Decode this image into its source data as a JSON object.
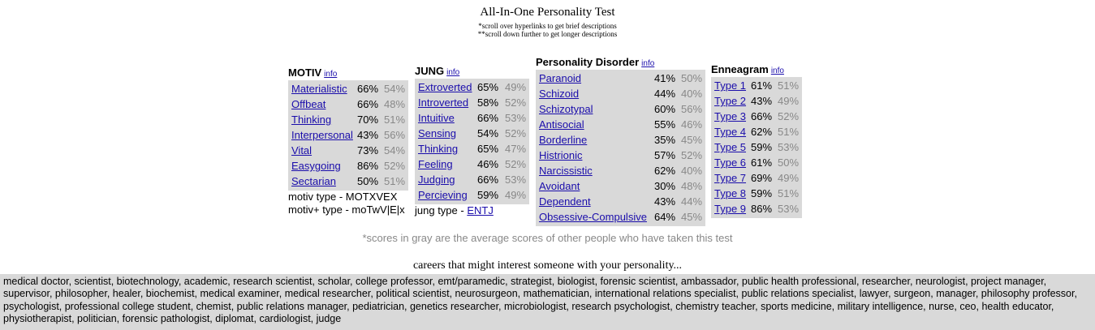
{
  "page": {
    "title": "All-In-One Personality Test",
    "note1": "*scroll over hyperlinks to get brief descriptions",
    "note2": "**scroll down further to get longer descriptions",
    "footnote": "*scores in gray are the average scores of other people who have taken this test",
    "careers_title": "careers that might interest someone with your personality...",
    "careers_text": "medical doctor, scientist, biotechnology, academic, research scientist, scholar, college professor, emt/paramedic, strategist, biologist, forensic scientist, ambassador, public health professional, researcher, neurologist, project manager, supervisor, philosopher, healer, biochemist, medical examiner, medical researcher, political scientist, neurosurgeon, mathematician, international relations specialist, public relations specialist, lawyer, surgeon, manager, philosophy professor, psychologist, professional college student, chemist, public relations manager, pediatrician, genetics researcher, microbiologist, research psychologist, chemistry teacher, sports medicine, military intelligence, nurse, ceo, health educator, physiotherapist, politician, forensic pathologist, diplomat, cardiologist, judge"
  },
  "motiv": {
    "heading": "MOTIV",
    "info": "info",
    "rows": [
      {
        "label": "Materialistic",
        "score": "66%",
        "avg": "54%"
      },
      {
        "label": "Offbeat",
        "score": "66%",
        "avg": "48%"
      },
      {
        "label": "Thinking",
        "score": "70%",
        "avg": "51%"
      },
      {
        "label": "Interpersonal",
        "score": "43%",
        "avg": "56%"
      },
      {
        "label": "Vital",
        "score": "73%",
        "avg": "54%"
      },
      {
        "label": "Easygoing",
        "score": "86%",
        "avg": "52%"
      },
      {
        "label": "Sectarian",
        "score": "50%",
        "avg": "51%"
      }
    ],
    "type_line": "motiv type - MOTXVEX",
    "plus_type_line": "motiv+ type - moTwV|E|x"
  },
  "jung": {
    "heading": "JUNG",
    "info": "info",
    "rows": [
      {
        "label": "Extroverted",
        "score": "65%",
        "avg": "49%"
      },
      {
        "label": "Introverted",
        "score": "58%",
        "avg": "52%"
      },
      {
        "label": "Intuitive",
        "score": "66%",
        "avg": "53%"
      },
      {
        "label": "Sensing",
        "score": "54%",
        "avg": "52%"
      },
      {
        "label": "Thinking",
        "score": "65%",
        "avg": "47%"
      },
      {
        "label": "Feeling",
        "score": "46%",
        "avg": "52%"
      },
      {
        "label": "Judging",
        "score": "66%",
        "avg": "53%"
      },
      {
        "label": "Percieving",
        "score": "59%",
        "avg": "49%"
      }
    ],
    "type_prefix": "jung type -",
    "type_value": "ENTJ"
  },
  "pd": {
    "heading": "Personality Disorder",
    "info": "info",
    "rows": [
      {
        "label": "Paranoid",
        "score": "41%",
        "avg": "50%"
      },
      {
        "label": "Schizoid",
        "score": "44%",
        "avg": "40%"
      },
      {
        "label": "Schizotypal",
        "score": "60%",
        "avg": "56%"
      },
      {
        "label": "Antisocial",
        "score": "55%",
        "avg": "46%"
      },
      {
        "label": "Borderline",
        "score": "35%",
        "avg": "45%"
      },
      {
        "label": "Histrionic",
        "score": "57%",
        "avg": "52%"
      },
      {
        "label": "Narcissistic",
        "score": "62%",
        "avg": "40%"
      },
      {
        "label": "Avoidant",
        "score": "30%",
        "avg": "48%"
      },
      {
        "label": "Dependent",
        "score": "43%",
        "avg": "44%"
      },
      {
        "label": "Obsessive-Compulsive",
        "score": "64%",
        "avg": "45%"
      }
    ]
  },
  "ennea": {
    "heading": "Enneagram",
    "info": "info",
    "rows": [
      {
        "label": "Type 1",
        "score": "61%",
        "avg": "51%"
      },
      {
        "label": "Type 2",
        "score": "43%",
        "avg": "49%"
      },
      {
        "label": "Type 3",
        "score": "66%",
        "avg": "52%"
      },
      {
        "label": "Type 4",
        "score": "62%",
        "avg": "51%"
      },
      {
        "label": "Type 5",
        "score": "59%",
        "avg": "53%"
      },
      {
        "label": "Type 6",
        "score": "61%",
        "avg": "50%"
      },
      {
        "label": "Type 7",
        "score": "69%",
        "avg": "49%"
      },
      {
        "label": "Type 8",
        "score": "59%",
        "avg": "51%"
      },
      {
        "label": "Type 9",
        "score": "86%",
        "avg": "53%"
      }
    ]
  }
}
